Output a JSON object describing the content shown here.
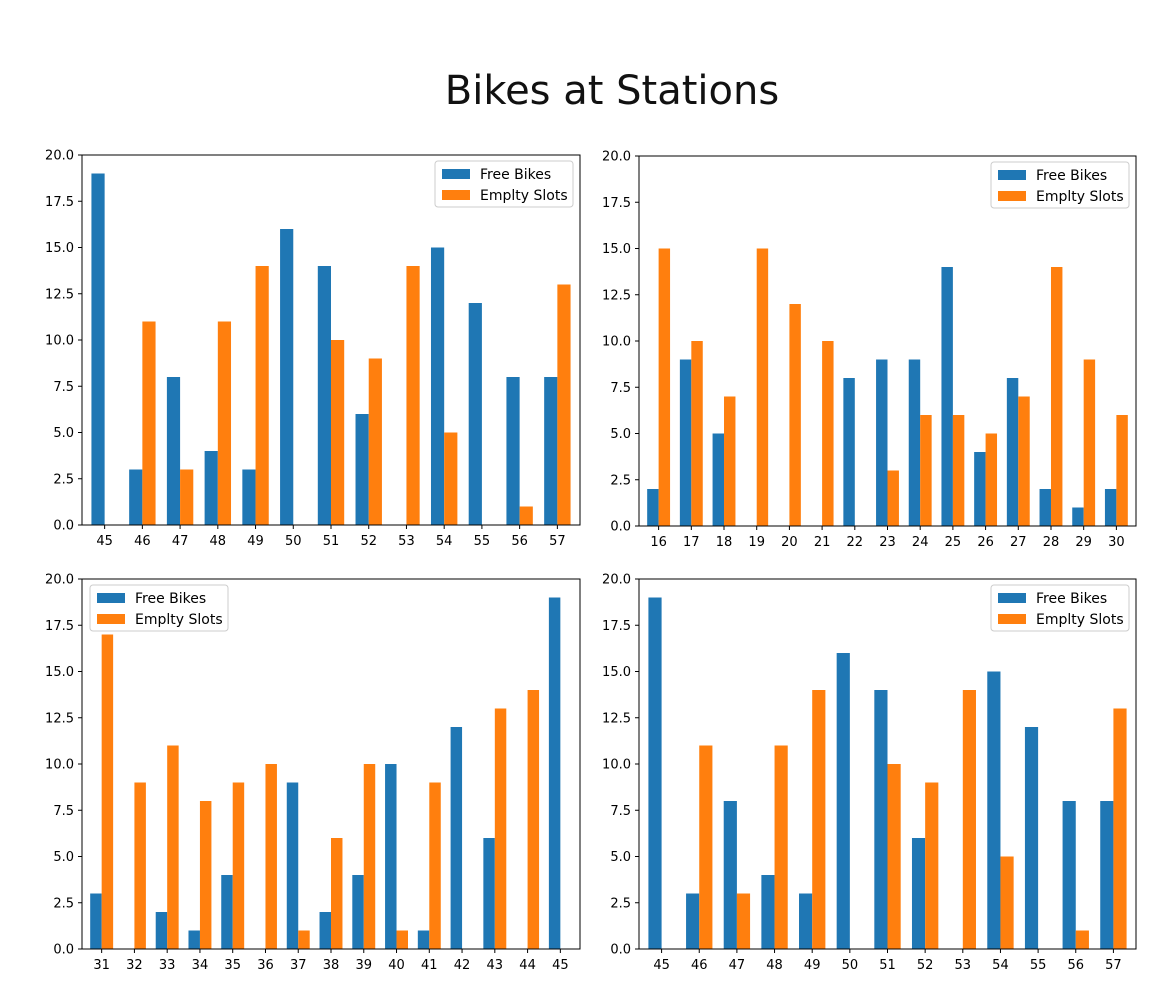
{
  "title": "Bikes at Stations",
  "colors": {
    "free": "#1f77b4",
    "empty": "#ff7f0e"
  },
  "legend": {
    "free": "Free Bikes",
    "empty": "Emplty Slots"
  },
  "chart_data": [
    {
      "type": "bar",
      "categories": [
        "45",
        "46",
        "47",
        "48",
        "49",
        "50",
        "51",
        "52",
        "53",
        "54",
        "55",
        "56",
        "57"
      ],
      "series": [
        {
          "name": "Free Bikes",
          "values": [
            19,
            3,
            8,
            4,
            3,
            16,
            14,
            6,
            0,
            15,
            12,
            8,
            8
          ]
        },
        {
          "name": "Emplty Slots",
          "values": [
            0,
            11,
            3,
            11,
            14,
            0,
            10,
            9,
            14,
            5,
            0,
            1,
            13
          ]
        }
      ],
      "ylim": [
        0,
        20
      ],
      "yticks": [
        "0.0",
        "2.5",
        "5.0",
        "7.5",
        "10.0",
        "12.5",
        "15.0",
        "17.5",
        "20.0"
      ],
      "legend_position": "top-right"
    },
    {
      "type": "bar",
      "categories": [
        "16",
        "17",
        "18",
        "19",
        "20",
        "21",
        "22",
        "23",
        "24",
        "25",
        "26",
        "27",
        "28",
        "29",
        "30"
      ],
      "series": [
        {
          "name": "Free Bikes",
          "values": [
            2,
            9,
            5,
            0,
            0,
            0,
            8,
            9,
            9,
            14,
            4,
            8,
            2,
            1,
            2
          ]
        },
        {
          "name": "Emplty Slots",
          "values": [
            15,
            10,
            7,
            15,
            12,
            10,
            0,
            3,
            6,
            6,
            5,
            7,
            14,
            9,
            6
          ]
        }
      ],
      "ylim": [
        0,
        20
      ],
      "yticks": [
        "0.0",
        "2.5",
        "5.0",
        "7.5",
        "10.0",
        "12.5",
        "15.0",
        "17.5",
        "20.0"
      ],
      "legend_position": "top-right"
    },
    {
      "type": "bar",
      "categories": [
        "31",
        "32",
        "33",
        "34",
        "35",
        "36",
        "37",
        "38",
        "39",
        "40",
        "41",
        "42",
        "43",
        "44",
        "45"
      ],
      "series": [
        {
          "name": "Free Bikes",
          "values": [
            3,
            0,
            2,
            1,
            4,
            0,
            9,
            2,
            4,
            10,
            1,
            12,
            6,
            0,
            19
          ]
        },
        {
          "name": "Emplty Slots",
          "values": [
            17,
            9,
            11,
            8,
            9,
            10,
            1,
            6,
            10,
            1,
            9,
            0,
            13,
            14,
            0
          ]
        }
      ],
      "ylim": [
        0,
        20
      ],
      "yticks": [
        "0.0",
        "2.5",
        "5.0",
        "7.5",
        "10.0",
        "12.5",
        "15.0",
        "17.5",
        "20.0"
      ],
      "legend_position": "top-left"
    },
    {
      "type": "bar",
      "categories": [
        "45",
        "46",
        "47",
        "48",
        "49",
        "50",
        "51",
        "52",
        "53",
        "54",
        "55",
        "56",
        "57"
      ],
      "series": [
        {
          "name": "Free Bikes",
          "values": [
            19,
            3,
            8,
            4,
            3,
            16,
            14,
            6,
            0,
            15,
            12,
            8,
            8
          ]
        },
        {
          "name": "Emplty Slots",
          "values": [
            0,
            11,
            3,
            11,
            14,
            0,
            10,
            9,
            14,
            5,
            0,
            1,
            13
          ]
        }
      ],
      "ylim": [
        0,
        20
      ],
      "yticks": [
        "0.0",
        "2.5",
        "5.0",
        "7.5",
        "10.0",
        "12.5",
        "15.0",
        "17.5",
        "20.0"
      ],
      "legend_position": "top-right"
    }
  ]
}
